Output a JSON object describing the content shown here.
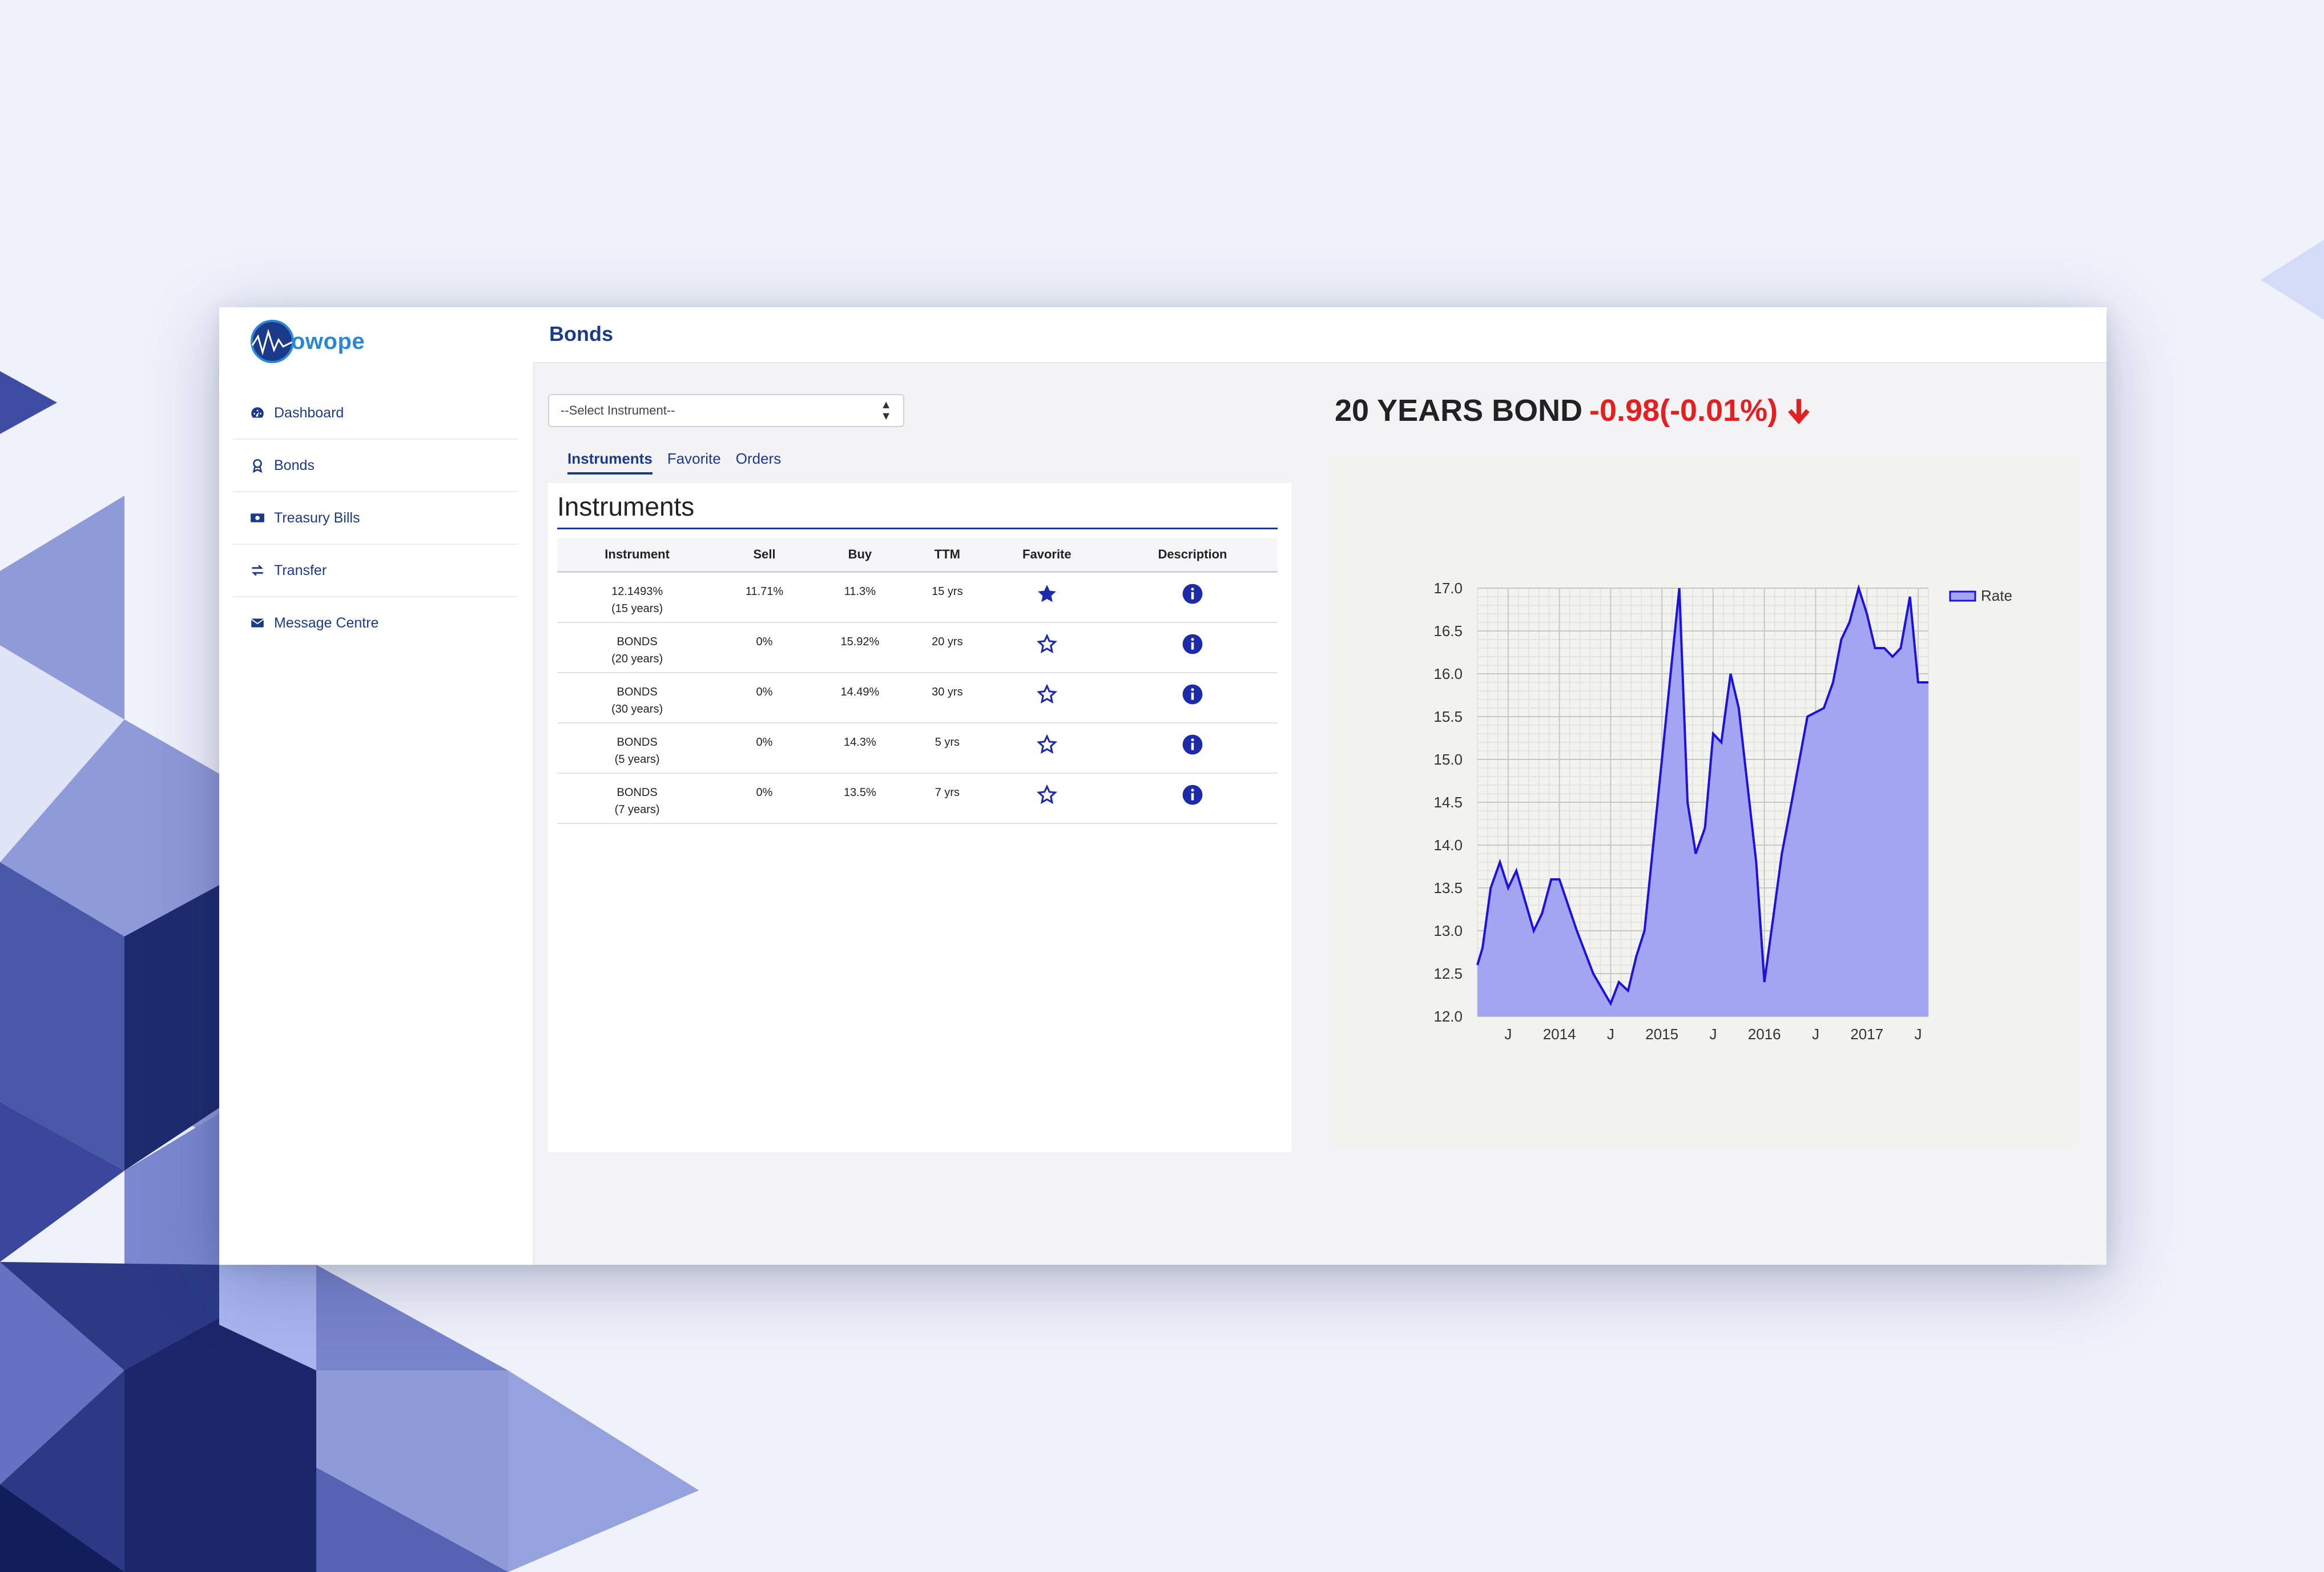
{
  "app": {
    "logo_text": "owope",
    "page_title": "Bonds"
  },
  "sidebar": {
    "items": [
      {
        "label": "Dashboard",
        "icon": "dashboard-icon"
      },
      {
        "label": "Bonds",
        "icon": "award-icon"
      },
      {
        "label": "Treasury Bills",
        "icon": "money-bill-icon"
      },
      {
        "label": "Transfer",
        "icon": "exchange-icon"
      },
      {
        "label": "Message Centre",
        "icon": "envelope-icon"
      }
    ]
  },
  "select": {
    "selected": "--Select Instrument--"
  },
  "tabs": [
    {
      "label": "Instruments",
      "active": true
    },
    {
      "label": "Favorite",
      "active": false
    },
    {
      "label": "Orders",
      "active": false
    }
  ],
  "instruments": {
    "title": "Instruments",
    "columns": [
      "Instrument",
      "Sell",
      "Buy",
      "TTM",
      "Favorite",
      "Description"
    ],
    "rows": [
      {
        "name": "12.1493%",
        "term": "(15 years)",
        "sell": "11.71%",
        "buy": "11.3%",
        "ttm": "15 yrs",
        "favorite": true
      },
      {
        "name": "BONDS",
        "term": "(20 years)",
        "sell": "0%",
        "buy": "15.92%",
        "ttm": "20 yrs",
        "favorite": false
      },
      {
        "name": "BONDS",
        "term": "(30 years)",
        "sell": "0%",
        "buy": "14.49%",
        "ttm": "30 yrs",
        "favorite": false
      },
      {
        "name": "BONDS",
        "term": "(5 years)",
        "sell": "0%",
        "buy": "14.3%",
        "ttm": "5 yrs",
        "favorite": false
      },
      {
        "name": "BONDS",
        "term": "(7 years)",
        "sell": "0%",
        "buy": "13.5%",
        "ttm": "7 yrs",
        "favorite": false
      }
    ]
  },
  "bond_header": {
    "title": "20 YEARS BOND",
    "change": "-0.98(-0.01%)",
    "direction_icon": "arrow-down-icon",
    "change_color": "#e41f1f"
  },
  "chart_data": {
    "type": "area",
    "title": "",
    "xlabel": "",
    "ylabel": "",
    "ylim": [
      12.0,
      17.0
    ],
    "yticks": [
      "12.0",
      "12.5",
      "13.0",
      "13.5",
      "14.0",
      "14.5",
      "15.0",
      "15.5",
      "16.0",
      "16.5",
      "17.0"
    ],
    "xlim": [
      2013.2,
      2017.6
    ],
    "xticks": [
      {
        "label": "J",
        "x": 2013.5
      },
      {
        "label": "2014",
        "x": 2014.0
      },
      {
        "label": "J",
        "x": 2014.5
      },
      {
        "label": "2015",
        "x": 2015.0
      },
      {
        "label": "J",
        "x": 2015.5
      },
      {
        "label": "2016",
        "x": 2016.0
      },
      {
        "label": "J",
        "x": 2016.5
      },
      {
        "label": "2017",
        "x": 2017.0
      },
      {
        "label": "J",
        "x": 2017.5
      }
    ],
    "grid": true,
    "legend": "top-right",
    "line_color": "#1c12d9",
    "fill_color": "#a3a4f2",
    "series": [
      {
        "name": "Rate",
        "x": [
          2013.2,
          2013.25,
          2013.33,
          2013.42,
          2013.5,
          2013.58,
          2013.75,
          2013.83,
          2013.92,
          2014.0,
          2014.17,
          2014.33,
          2014.5,
          2014.58,
          2014.67,
          2014.75,
          2014.83,
          2015.0,
          2015.17,
          2015.25,
          2015.33,
          2015.42,
          2015.5,
          2015.58,
          2015.67,
          2015.75,
          2015.92,
          2016.0,
          2016.08,
          2016.17,
          2016.25,
          2016.42,
          2016.58,
          2016.67,
          2016.75,
          2016.83,
          2016.92,
          2017.0,
          2017.08,
          2017.17,
          2017.25,
          2017.33,
          2017.42,
          2017.5,
          2017.58,
          2017.6
        ],
        "y": [
          12.6,
          12.8,
          13.5,
          13.8,
          13.5,
          13.7,
          13.0,
          13.2,
          13.6,
          13.6,
          13.0,
          12.5,
          12.15,
          12.4,
          12.3,
          12.7,
          13.0,
          15.0,
          17.0,
          14.5,
          13.9,
          14.2,
          15.3,
          15.2,
          16.0,
          15.6,
          13.8,
          12.4,
          13.1,
          13.9,
          14.4,
          15.5,
          15.6,
          15.9,
          16.4,
          16.6,
          17.0,
          16.7,
          16.3,
          16.3,
          16.2,
          16.3,
          16.9,
          15.9,
          15.9,
          15.9
        ]
      }
    ]
  }
}
